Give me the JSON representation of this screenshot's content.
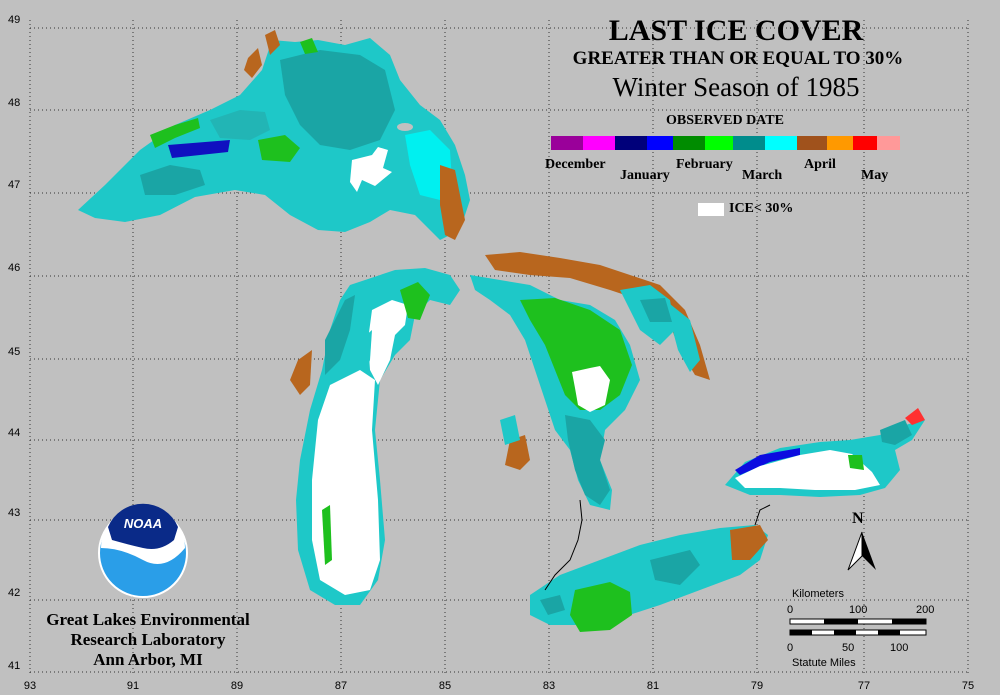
{
  "titles": {
    "line1": "LAST ICE COVER",
    "line2": "GREATER THAN OR EQUAL TO 30%",
    "line3": "Winter Season of 1985"
  },
  "legend": {
    "heading": "OBSERVED DATE",
    "months": [
      "December",
      "January",
      "February",
      "March",
      "April",
      "May"
    ],
    "colors": {
      "december": [
        "#9a009a",
        "#ff00ff"
      ],
      "january": [
        "#00007a",
        "#0000ff"
      ],
      "february": [
        "#008c00",
        "#00ff00"
      ],
      "march": [
        "#008c8c",
        "#00ffff"
      ],
      "april": [
        "#a0521c",
        "#ff9900"
      ],
      "may": [
        "#ff0000",
        "#ff9999"
      ]
    },
    "ice_label": "ICE< 30%",
    "ice_color": "#ffffff"
  },
  "credit": {
    "line1": "Great Lakes Environmental",
    "line2": "Research Laboratory",
    "line3": "Ann Arbor, MI"
  },
  "logo": {
    "text": "NOAA"
  },
  "axes": {
    "latitudes": [
      "49",
      "48",
      "47",
      "46",
      "45",
      "44",
      "43",
      "42",
      "41"
    ],
    "longitudes": [
      "93",
      "91",
      "89",
      "87",
      "85",
      "83",
      "81",
      "79",
      "77",
      "75"
    ]
  },
  "scale_bar": {
    "km_label": "Kilometers",
    "km_ticks": [
      "0",
      "100",
      "200"
    ],
    "mi_label": "Statute Miles",
    "mi_ticks": [
      "0",
      "50",
      "100"
    ]
  },
  "north_label": "N"
}
